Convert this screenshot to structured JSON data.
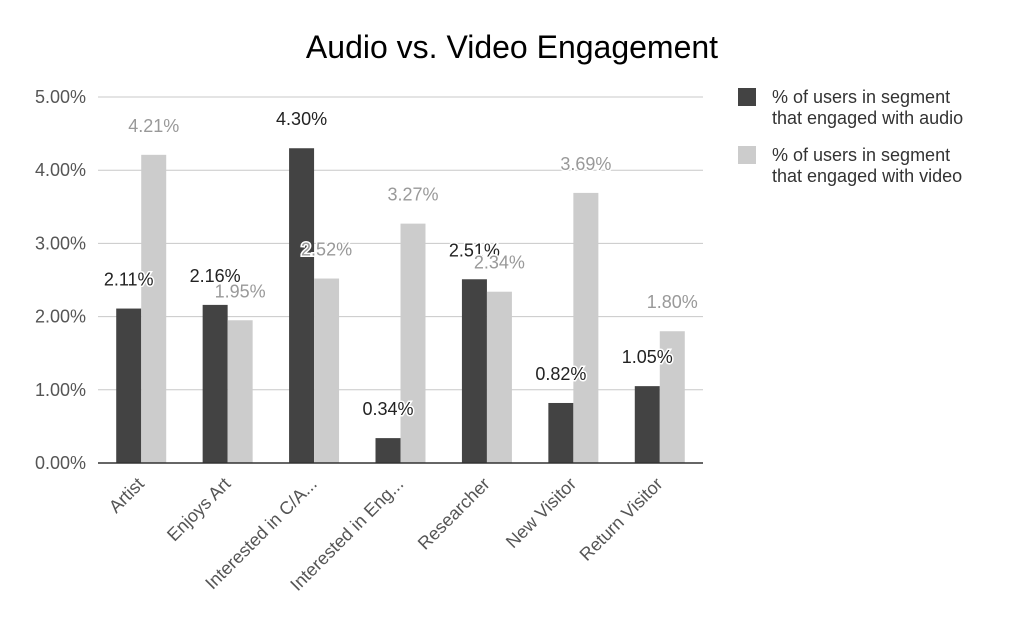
{
  "chart_data": {
    "type": "bar",
    "title": "Audio vs. Video Engagement",
    "categories": [
      "Artist",
      "Enjoys Art",
      "Interested in C/A...",
      "Interested in Eng...",
      "Researcher",
      "New Visitor",
      "Return Visitor"
    ],
    "series": [
      {
        "name": "% of users in segment that engaged with audio",
        "legend_lines": [
          "% of users in segment",
          "that engaged with audio"
        ],
        "color": "#434343",
        "label_color": "#222222",
        "values": [
          2.11,
          2.16,
          4.3,
          0.34,
          2.51,
          0.82,
          1.05
        ],
        "labels": [
          "2.11%",
          "2.16%",
          "4.30%",
          "0.34%",
          "2.51%",
          "0.82%",
          "1.05%"
        ]
      },
      {
        "name": "% of users in segment that engaged with video",
        "legend_lines": [
          "% of users in segment",
          "that engaged with video"
        ],
        "color": "#cccccc",
        "label_color": "#999999",
        "values": [
          4.21,
          1.95,
          2.52,
          3.27,
          2.34,
          3.69,
          1.8
        ],
        "labels": [
          "4.21%",
          "1.95%",
          "2.52%",
          "3.27%",
          "2.34%",
          "3.69%",
          "1.80%"
        ]
      }
    ],
    "ylim": [
      0,
      5
    ],
    "yticks": [
      "0.00%",
      "1.00%",
      "2.00%",
      "3.00%",
      "4.00%",
      "5.00%"
    ],
    "grid": true,
    "legend_position": "right"
  }
}
